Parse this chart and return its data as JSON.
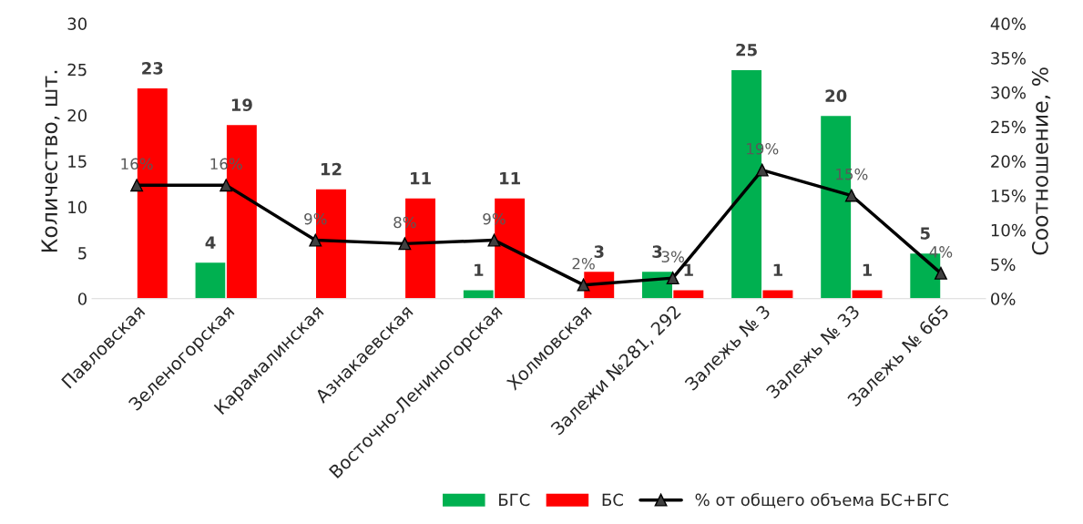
{
  "chart_data": {
    "type": "bar",
    "ylabel": "Количество, шт.",
    "y2label": "Соотношение, %",
    "categories": [
      "Павловская",
      "Зеленогорская",
      "Карамалинская",
      "Азнакаевская",
      "Восточно-Лениногорская",
      "Холмовская",
      "Залежи №281, 292",
      "Залежь № 3",
      "Залежь № 33",
      "Залежь № 665"
    ],
    "series": [
      {
        "name": "БГС",
        "color": "#00b050",
        "values": [
          null,
          4,
          null,
          null,
          1,
          null,
          3,
          25,
          20,
          5
        ],
        "value_labels": [
          null,
          "4",
          null,
          null,
          "1",
          null,
          "3",
          "25",
          "20",
          "5"
        ]
      },
      {
        "name": "БС",
        "color": "#ff0000",
        "values": [
          23,
          19,
          12,
          11,
          11,
          3,
          1,
          1,
          1,
          null
        ],
        "value_labels": [
          "23",
          "19",
          "12",
          "11",
          "11",
          "3",
          "1",
          "1",
          "1",
          null
        ]
      },
      {
        "name": "% от общего объема БС+БГС",
        "type": "line",
        "axis": "y2",
        "color": "#000000",
        "marker": "triangle",
        "line_style": "solid",
        "values": [
          16.5,
          16.5,
          8.5,
          8,
          8.5,
          2,
          3,
          18.7,
          15,
          3.7
        ],
        "value_labels": [
          "16%",
          "16%",
          "9%",
          "8%",
          "9%",
          "2%",
          "3%",
          "19%",
          "15%",
          "4%"
        ]
      }
    ],
    "ylim": [
      0,
      30
    ],
    "yticks": [
      0,
      5,
      10,
      15,
      20,
      25,
      30
    ],
    "y2lim": [
      0,
      40
    ],
    "y2ticks": [
      {
        "value": 0,
        "label": "0%"
      },
      {
        "value": 5,
        "label": "5%"
      },
      {
        "value": 10,
        "label": "10%"
      },
      {
        "value": 15,
        "label": "15%"
      },
      {
        "value": 20,
        "label": "20%"
      },
      {
        "value": 25,
        "label": "25%"
      },
      {
        "value": 30,
        "label": "30%"
      },
      {
        "value": 35,
        "label": "35%"
      },
      {
        "value": 40,
        "label": "40%"
      }
    ],
    "grid": false,
    "legend": "bottom"
  }
}
